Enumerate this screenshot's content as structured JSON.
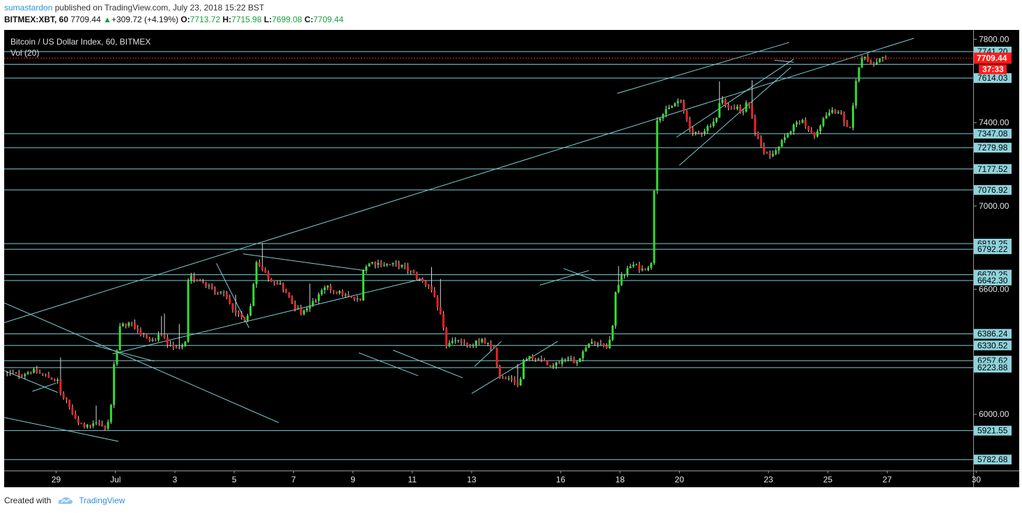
{
  "header": {
    "author": "sumastardon",
    "published": "published on TradingView.com, July 23, 2018 15:22 BST",
    "symbol": "BITMEX:XBT, 60",
    "last": "7709.44",
    "change": "+309.72 (+4.19%)",
    "o_label": "O:",
    "o": "7713.72",
    "h_label": "H:",
    "h": "7715.98",
    "l_label": "L:",
    "l": "7699.08",
    "c_label": "C:",
    "c": "7709.44"
  },
  "legend": {
    "title": "Bitcoin / US Dollar Index, 60, BITMEX",
    "vol": "Vol (20)"
  },
  "footer": {
    "created": "Created with",
    "brand": "TradingView"
  },
  "colors": {
    "background": "#000000",
    "up": "#33dd33",
    "down": "#ee2222",
    "level_line": "#7ecfd6",
    "label_bg": "#8fd3dc",
    "last_price": "#ff1a1a"
  },
  "chart_data": {
    "type": "candlestick",
    "title": "Bitcoin / US Dollar Index, 60, BITMEX",
    "x_ticks": [
      {
        "label": "29",
        "day": 0
      },
      {
        "label": "Jul",
        "day": 2
      },
      {
        "label": "3",
        "day": 4
      },
      {
        "label": "5",
        "day": 6
      },
      {
        "label": "7",
        "day": 8
      },
      {
        "label": "9",
        "day": 10
      },
      {
        "label": "11",
        "day": 12
      },
      {
        "label": "13",
        "day": 14
      },
      {
        "label": "16",
        "day": 17
      },
      {
        "label": "18",
        "day": 19
      },
      {
        "label": "20",
        "day": 21
      },
      {
        "label": "23",
        "day": 24
      },
      {
        "label": "25",
        "day": 26
      },
      {
        "label": "27",
        "day": 28
      },
      {
        "label": "30",
        "day": 31
      }
    ],
    "y_ticks": [
      6000,
      6600,
      7000,
      7400,
      7800
    ],
    "ylim": [
      5730,
      7845
    ],
    "xlim": [
      -1.75,
      30.9
    ],
    "last_price": {
      "value": 7709.44,
      "label": "7709.44",
      "countdown": "37:33"
    },
    "horizontal_levels": [
      {
        "value": 7741.2,
        "label": "7741.20"
      },
      {
        "value": 7680,
        "label": ""
      },
      {
        "value": 7614.03,
        "label": "7614.03"
      },
      {
        "value": 7347.08,
        "label": "7347.08"
      },
      {
        "value": 7279.98,
        "label": "7279.98"
      },
      {
        "value": 7177.52,
        "label": "7177.52"
      },
      {
        "value": 7076.92,
        "label": "7076.92"
      },
      {
        "value": 6819.25,
        "label": "6819.25"
      },
      {
        "value": 6792.22,
        "label": "6792.22"
      },
      {
        "value": 6670.25,
        "label": "6670.25"
      },
      {
        "value": 6642.3,
        "label": "6642.30"
      },
      {
        "value": 6386.24,
        "label": "6386.24"
      },
      {
        "value": 6330.52,
        "label": "6330.52"
      },
      {
        "value": 6257.62,
        "label": "6257.62"
      },
      {
        "value": 6223.88,
        "label": "6223.88"
      },
      {
        "value": 5921.55,
        "label": "5921.55"
      },
      {
        "value": 5782.68,
        "label": "5782.68"
      }
    ],
    "trend_lines": [
      {
        "x1": -1.75,
        "y1": 6440,
        "x2": 28.9,
        "y2": 7805
      },
      {
        "x1": 1.9,
        "y1": 6290,
        "x2": 12.35,
        "y2": 6650
      },
      {
        "x1": 18.9,
        "y1": 7540,
        "x2": 24.7,
        "y2": 7785
      },
      {
        "x1": 20.9,
        "y1": 7330,
        "x2": 24.85,
        "y2": 7705
      },
      {
        "x1": 21,
        "y1": 7195,
        "x2": 24.75,
        "y2": 7665
      },
      {
        "x1": -1.75,
        "y1": 6535,
        "x2": 7.5,
        "y2": 5960
      },
      {
        "x1": -1.75,
        "y1": 6210,
        "x2": 0.05,
        "y2": 6105
      },
      {
        "x1": -1.75,
        "y1": 5985,
        "x2": 2.1,
        "y2": 5870
      },
      {
        "x1": -0.8,
        "y1": 6110,
        "x2": 0,
        "y2": 6150
      },
      {
        "x1": 1.3,
        "y1": 6330,
        "x2": 3.3,
        "y2": 6255
      },
      {
        "x1": 5.4,
        "y1": 6725,
        "x2": 6.5,
        "y2": 6415
      },
      {
        "x1": 6.3,
        "y1": 6770,
        "x2": 10.4,
        "y2": 6690
      },
      {
        "x1": 10.2,
        "y1": 6295,
        "x2": 12.2,
        "y2": 6185
      },
      {
        "x1": 11.35,
        "y1": 6308,
        "x2": 13.7,
        "y2": 6175
      },
      {
        "x1": 14,
        "y1": 6100,
        "x2": 16.9,
        "y2": 6350
      },
      {
        "x1": 14.1,
        "y1": 6230,
        "x2": 15,
        "y2": 6350
      },
      {
        "x1": 16.3,
        "y1": 6620,
        "x2": 17.95,
        "y2": 6690
      },
      {
        "x1": 17.1,
        "y1": 6700,
        "x2": 18.2,
        "y2": 6640
      },
      {
        "x1": 24.2,
        "y1": 7700,
        "x2": 24.85,
        "y2": 7690
      }
    ],
    "price_path": [
      [
        -1.75,
        6200
      ],
      [
        -1.2,
        6190
      ],
      [
        -0.8,
        6210
      ],
      [
        -0.3,
        6180
      ],
      [
        0.05,
        6160
      ],
      [
        0.1,
        6105
      ],
      [
        0.35,
        6060
      ],
      [
        0.7,
        5960
      ],
      [
        1.0,
        5940
      ],
      [
        1.4,
        5955
      ],
      [
        1.7,
        5925
      ],
      [
        1.85,
        6050
      ],
      [
        1.95,
        6230
      ],
      [
        2.05,
        6300
      ],
      [
        2.1,
        6430
      ],
      [
        2.5,
        6435
      ],
      [
        2.9,
        6380
      ],
      [
        3.3,
        6350
      ],
      [
        3.5,
        6380
      ],
      [
        3.9,
        6320
      ],
      [
        4.2,
        6310
      ],
      [
        4.35,
        6340
      ],
      [
        4.4,
        6600
      ],
      [
        4.5,
        6660
      ],
      [
        4.9,
        6640
      ],
      [
        5.3,
        6600
      ],
      [
        5.7,
        6570
      ],
      [
        6.0,
        6495
      ],
      [
        6.4,
        6440
      ],
      [
        6.6,
        6560
      ],
      [
        6.75,
        6720
      ],
      [
        7.2,
        6650
      ],
      [
        7.6,
        6620
      ],
      [
        8.0,
        6520
      ],
      [
        8.3,
        6480
      ],
      [
        8.7,
        6545
      ],
      [
        9.1,
        6610
      ],
      [
        9.6,
        6580
      ],
      [
        9.9,
        6560
      ],
      [
        10.25,
        6545
      ],
      [
        10.35,
        6700
      ],
      [
        10.6,
        6730
      ],
      [
        11.1,
        6720
      ],
      [
        11.6,
        6715
      ],
      [
        12.0,
        6680
      ],
      [
        12.2,
        6650
      ],
      [
        12.6,
        6615
      ],
      [
        13.0,
        6450
      ],
      [
        13.15,
        6330
      ],
      [
        13.5,
        6360
      ],
      [
        13.9,
        6320
      ],
      [
        14.3,
        6360
      ],
      [
        14.75,
        6310
      ],
      [
        14.95,
        6170
      ],
      [
        15.2,
        6165
      ],
      [
        15.5,
        6150
      ],
      [
        15.6,
        6110
      ],
      [
        15.7,
        6250
      ],
      [
        15.95,
        6275
      ],
      [
        16.3,
        6265
      ],
      [
        16.6,
        6230
      ],
      [
        16.9,
        6245
      ],
      [
        17.2,
        6280
      ],
      [
        17.5,
        6250
      ],
      [
        17.9,
        6330
      ],
      [
        18.2,
        6350
      ],
      [
        18.6,
        6325
      ],
      [
        18.75,
        6420
      ],
      [
        18.8,
        6560
      ],
      [
        19.0,
        6650
      ],
      [
        19.4,
        6720
      ],
      [
        19.75,
        6695
      ],
      [
        20.05,
        6720
      ],
      [
        20.15,
        7080
      ],
      [
        20.2,
        7280
      ],
      [
        20.25,
        7420
      ],
      [
        20.6,
        7460
      ],
      [
        21.0,
        7510
      ],
      [
        21.35,
        7380
      ],
      [
        21.45,
        7340
      ],
      [
        21.8,
        7360
      ],
      [
        22.25,
        7420
      ],
      [
        22.4,
        7520
      ],
      [
        22.7,
        7460
      ],
      [
        22.9,
        7480
      ],
      [
        23.1,
        7430
      ],
      [
        23.3,
        7520
      ],
      [
        23.55,
        7360
      ],
      [
        23.75,
        7280
      ],
      [
        24.0,
        7240
      ],
      [
        24.15,
        7260
      ],
      [
        24.5,
        7320
      ],
      [
        24.9,
        7390
      ],
      [
        25.2,
        7410
      ],
      [
        25.3,
        7360
      ],
      [
        25.6,
        7330
      ],
      [
        25.9,
        7440
      ],
      [
        26.35,
        7460
      ],
      [
        26.55,
        7410
      ],
      [
        26.7,
        7350
      ],
      [
        26.8,
        7420
      ],
      [
        26.95,
        7610
      ],
      [
        27.1,
        7690
      ],
      [
        27.25,
        7720
      ],
      [
        27.45,
        7680
      ],
      [
        27.7,
        7705
      ],
      [
        28.0,
        7709.44
      ]
    ]
  }
}
